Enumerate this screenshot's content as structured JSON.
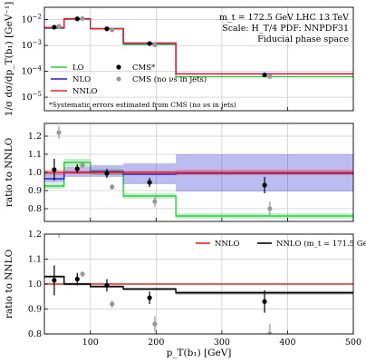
{
  "chart_data": [
    {
      "type": "line",
      "panel": "top",
      "ylabel": "1/σ dσ/dp_T(b₁) [GeV⁻¹]",
      "yscale": "log",
      "ylim": [
        3e-06,
        0.03
      ],
      "xlim": [
        30,
        500
      ],
      "grid": true,
      "yticks": [
        {
          "value": 1e-05,
          "base": "10",
          "exp": "−5"
        },
        {
          "value": 0.0001,
          "base": "10",
          "exp": "−4"
        },
        {
          "value": 0.001,
          "base": "10",
          "exp": "−3"
        },
        {
          "value": 0.01,
          "base": "10",
          "exp": "−2"
        }
      ],
      "info_lines": [
        "m_t = 172.5 GeV LHC 13 TeV",
        "Scale: H_T/4 PDF: NNPDF31",
        "Fiducial phase space"
      ],
      "note": "*Systematic errors estimated from CMS (no νs in jets)",
      "legend": [
        {
          "label": "LO",
          "color": "#2ecc40",
          "kind": "line"
        },
        {
          "label": "NLO",
          "color": "#2020d0",
          "kind": "line"
        },
        {
          "label": "NNLO",
          "color": "#e8242b",
          "kind": "line"
        },
        {
          "label": "CMS*",
          "color": "#000000",
          "kind": "point"
        },
        {
          "label": "CMS (no νs in jets)",
          "color": "#999999",
          "kind": "point"
        }
      ],
      "bin_edges": [
        30,
        60,
        100,
        150,
        230,
        500
      ],
      "series": [
        {
          "name": "LO",
          "color": "#2ecc40",
          "values": [
            0.0046,
            0.011,
            0.0044,
            0.0011,
            6.2e-05
          ]
        },
        {
          "name": "NLO",
          "color": "#2020d0",
          "values": [
            0.0048,
            0.0108,
            0.0045,
            0.00121,
            8e-05
          ]
        },
        {
          "name": "NNLO",
          "color": "#e8242b",
          "values": [
            0.005,
            0.0105,
            0.0044,
            0.00125,
            7.9e-05
          ]
        }
      ],
      "points": [
        {
          "name": "CMS*",
          "color": "#000000",
          "x": [
            45,
            80,
            125,
            190,
            365
          ],
          "y": [
            0.0051,
            0.0107,
            0.0044,
            0.00119,
            7.3e-05
          ]
        },
        {
          "name": "CMS (no νs in jets)",
          "color": "#999999",
          "x": [
            52,
            88,
            133,
            198,
            373
          ],
          "y": [
            0.0055,
            0.011,
            0.004,
            0.00105,
            6.3e-05
          ]
        }
      ]
    },
    {
      "type": "line",
      "panel": "middle",
      "ylabel": "ratio to NNLO",
      "ylim": [
        0.73,
        1.27
      ],
      "xlim": [
        30,
        500
      ],
      "yticks": [
        "0.8",
        "0.9",
        "1.0",
        "1.1",
        "1.2"
      ],
      "grid": true,
      "bin_edges": [
        30,
        60,
        100,
        150,
        230,
        500
      ],
      "bands": [
        {
          "name": "LO",
          "color": "#2ecc40",
          "central": [
            0.925,
            1.055,
            1.005,
            0.87,
            0.76
          ],
          "lo": [
            0.91,
            1.03,
            0.985,
            0.855,
            0.745
          ],
          "hi": [
            0.94,
            1.075,
            1.02,
            0.885,
            0.775
          ]
        },
        {
          "name": "NLO",
          "color": "#2020d0",
          "central": [
            0.965,
            1.0,
            1.005,
            0.99,
            0.995
          ],
          "lo": [
            0.945,
            0.975,
            0.975,
            0.935,
            0.895
          ],
          "hi": [
            0.995,
            1.03,
            1.04,
            1.05,
            1.1
          ]
        },
        {
          "name": "NNLO",
          "color": "#e8242b",
          "central": [
            1.0,
            1.0,
            1.0,
            1.0,
            1.0
          ],
          "lo": [
            0.985,
            0.99,
            0.99,
            0.99,
            0.985
          ],
          "hi": [
            1.015,
            1.01,
            1.01,
            1.01,
            1.015
          ]
        }
      ],
      "points": [
        {
          "name": "CMS*",
          "color": "#000000",
          "x": [
            45,
            80,
            125,
            190,
            365
          ],
          "y": [
            1.015,
            1.02,
            0.995,
            0.945,
            0.93
          ],
          "err": [
            0.06,
            0.025,
            0.025,
            0.025,
            0.045
          ]
        },
        {
          "name": "CMS (no νs in jets)",
          "color": "#999999",
          "x": [
            52,
            88,
            133,
            198,
            373
          ],
          "y": [
            1.22,
            1.04,
            0.92,
            0.84,
            0.8
          ],
          "err": [
            0.035,
            0.01,
            0.015,
            0.03,
            0.04
          ]
        }
      ]
    },
    {
      "type": "line",
      "panel": "bottom",
      "ylabel": "ratio to NNLO",
      "xlabel": "p_T(b₁) [GeV]",
      "ylim": [
        0.8,
        1.2
      ],
      "xlim": [
        30,
        500
      ],
      "yticks": [
        "0.8",
        "0.9",
        "1.0",
        "1.1",
        "1.2"
      ],
      "xticks": [
        100,
        200,
        300,
        400,
        500
      ],
      "grid": true,
      "bin_edges": [
        30,
        60,
        100,
        150,
        230,
        500
      ],
      "legend": [
        {
          "label": "NNLO",
          "color": "#e8242b"
        },
        {
          "label": "NNLO (m_t = 171.5 GeV)",
          "color": "#000000"
        }
      ],
      "bands": [
        {
          "name": "NNLO",
          "color": "#e8242b",
          "central": [
            1.0,
            1.0,
            1.0,
            1.0,
            1.0
          ],
          "lo": [
            1.0,
            1.0,
            1.0,
            1.0,
            1.0
          ],
          "hi": [
            1.0,
            1.0,
            1.0,
            1.0,
            1.0
          ]
        },
        {
          "name": "NNLO (m_t = 171.5 GeV)",
          "color": "#000000",
          "central": [
            1.03,
            1.0,
            0.99,
            0.98,
            0.965
          ],
          "lo": [
            1.025,
            0.995,
            0.985,
            0.975,
            0.958
          ],
          "hi": [
            1.035,
            1.005,
            0.995,
            0.985,
            0.972
          ]
        }
      ],
      "points": [
        {
          "name": "CMS*",
          "color": "#000000",
          "x": [
            45,
            80,
            125,
            190,
            365
          ],
          "y": [
            1.015,
            1.02,
            0.995,
            0.945,
            0.93
          ],
          "err": [
            0.06,
            0.025,
            0.025,
            0.025,
            0.045
          ]
        },
        {
          "name": "CMS (no νs in jets)",
          "color": "#999999",
          "x": [
            52,
            88,
            133,
            198,
            373
          ],
          "y": [
            1.22,
            1.04,
            0.92,
            0.84,
            0.8
          ],
          "err": [
            0.035,
            0.01,
            0.015,
            0.03,
            0.04
          ]
        }
      ]
    }
  ]
}
